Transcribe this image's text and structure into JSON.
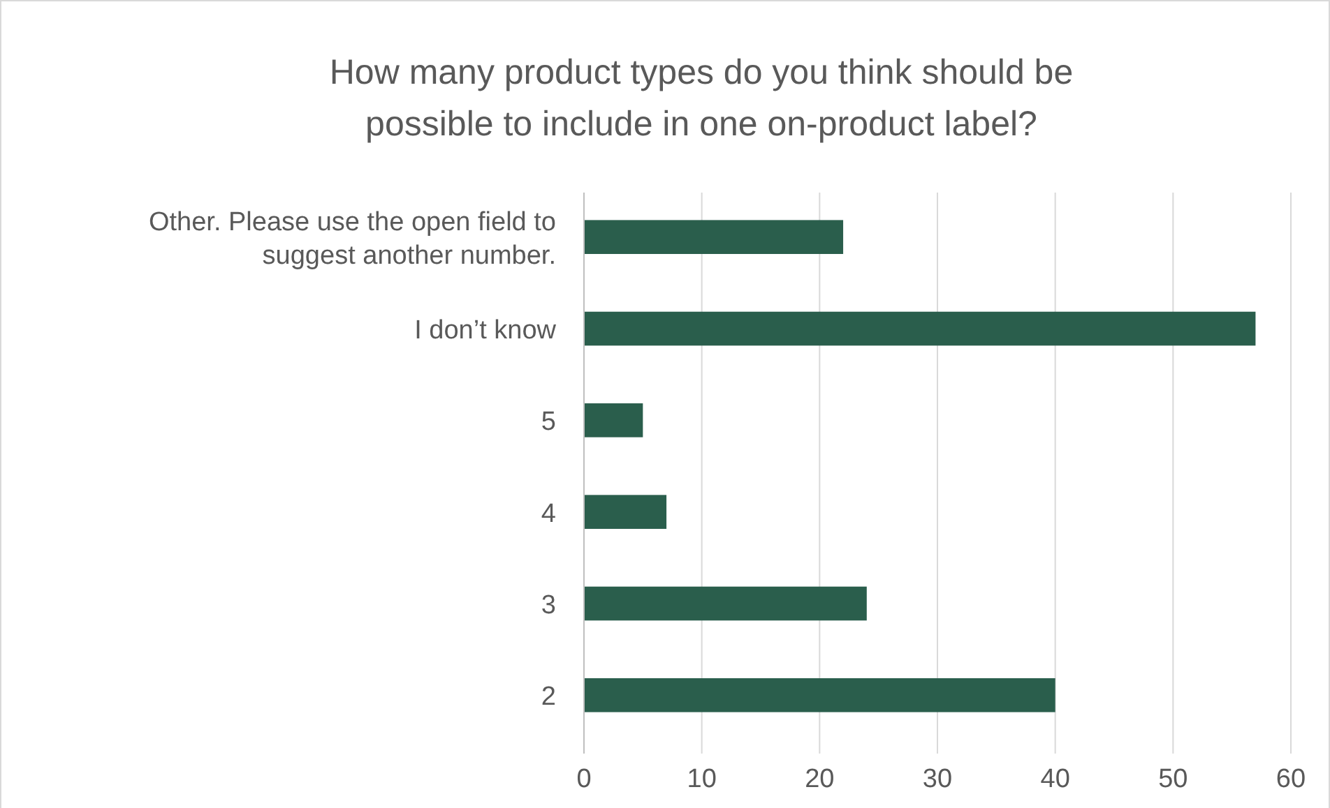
{
  "chart_data": {
    "type": "bar",
    "orientation": "horizontal",
    "title": "How many product types do you think should be possible to include in one on-product label?",
    "categories": [
      "Other. Please use the open field to suggest another number.",
      "I don’t know",
      "5",
      "4",
      "3",
      "2"
    ],
    "values": [
      22,
      57,
      5,
      7,
      24,
      40
    ],
    "color": "#2a5e4c",
    "xlim": [
      0,
      60
    ],
    "xticks": [
      0,
      10,
      20,
      30,
      40,
      50,
      60
    ],
    "grid": "x"
  }
}
